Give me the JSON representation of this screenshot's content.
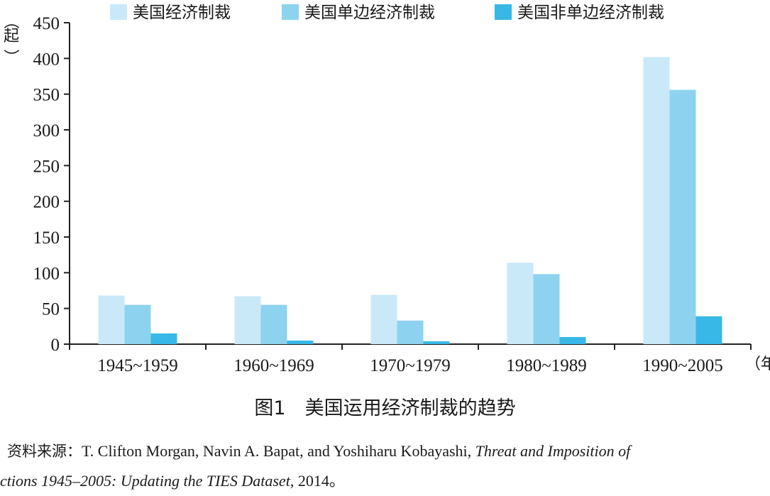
{
  "chart_data": {
    "type": "bar",
    "title": "图1　美国运用经济制裁的趋势",
    "categories": [
      "1945~1959",
      "1960~1969",
      "1970~1979",
      "1980~1989",
      "1990~2005"
    ],
    "series": [
      {
        "name": "美国经济制裁",
        "values": [
          68,
          67,
          69,
          114,
          402
        ],
        "color": "#c9e9f8"
      },
      {
        "name": "美国单边经济制裁",
        "values": [
          55,
          55,
          33,
          98,
          356
        ],
        "color": "#8dd3f0"
      },
      {
        "name": "美国非单边经济制裁",
        "values": [
          15,
          5,
          4,
          10,
          39
        ],
        "color": "#38b8e6"
      }
    ],
    "ylabel_top": "（",
    "ylabel_char": "起",
    "ylabel_bottom": "）",
    "xlabel": "（年",
    "ylim": [
      0,
      450
    ],
    "yticks": [
      0,
      50,
      100,
      150,
      200,
      250,
      300,
      350,
      400,
      450
    ],
    "grid": false,
    "legend_position": "top"
  },
  "source": {
    "label": "资料来源：",
    "authors": "T. Clifton Morgan, Navin A. Bapat, and Yoshiharu Kobayashi, ",
    "title_part1": "Threat and Imposition of",
    "title_part2": "ctions 1945–2005: Updating the TIES Dataset",
    "year_tail": ", 2014。"
  }
}
